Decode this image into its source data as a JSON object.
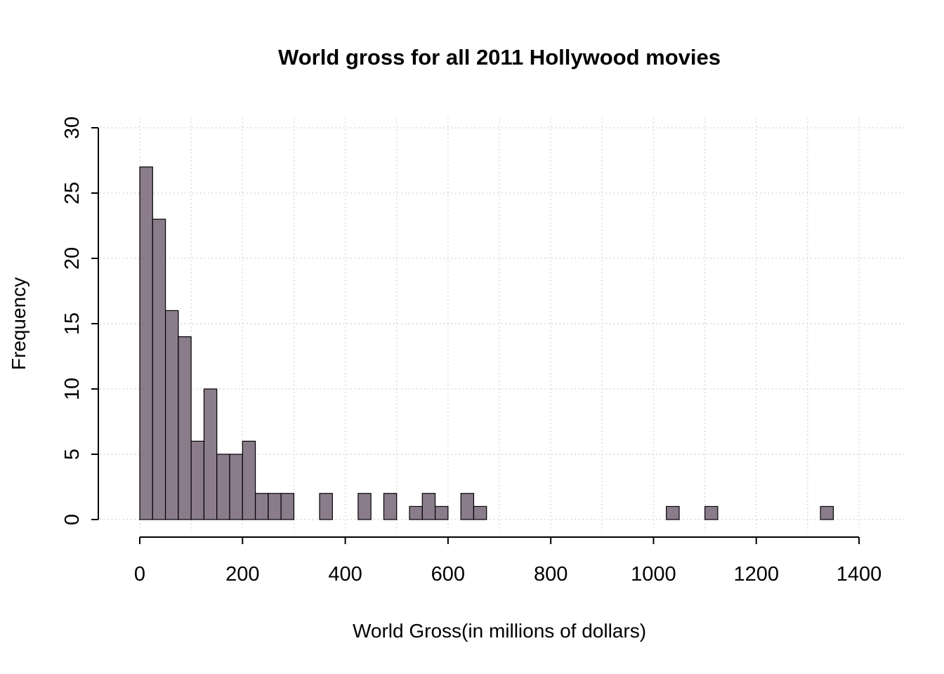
{
  "chart_data": {
    "type": "bar",
    "variant": "histogram",
    "title": "World gross for all 2011 Hollywood movies",
    "xlabel": "World Gross(in millions of dollars)",
    "ylabel": "Frequency",
    "bin_start": 0,
    "bin_width": 25,
    "counts": [
      27,
      23,
      16,
      14,
      6,
      10,
      5,
      5,
      6,
      2,
      2,
      2,
      0,
      0,
      2,
      0,
      0,
      2,
      0,
      2,
      0,
      1,
      2,
      1,
      0,
      2,
      1,
      0,
      0,
      0,
      0,
      0,
      0,
      0,
      0,
      0,
      0,
      0,
      0,
      0,
      0,
      1,
      0,
      0,
      1,
      0,
      0,
      0,
      0,
      0,
      0,
      0,
      0,
      1,
      0,
      0
    ],
    "x_ticks": [
      0,
      200,
      400,
      600,
      800,
      1000,
      1200,
      1400
    ],
    "y_ticks": [
      0,
      5,
      10,
      15,
      20,
      25,
      30
    ],
    "xlim": [
      0,
      1400
    ],
    "ylim": [
      0,
      30
    ],
    "grid": {
      "style": "dotted",
      "color": "#cfcfcf",
      "x_step": 100,
      "y_step": 5
    },
    "bar_fill": "#8b7c8b",
    "bar_stroke": "#000000",
    "axis_color": "#000000",
    "legend": "none"
  }
}
